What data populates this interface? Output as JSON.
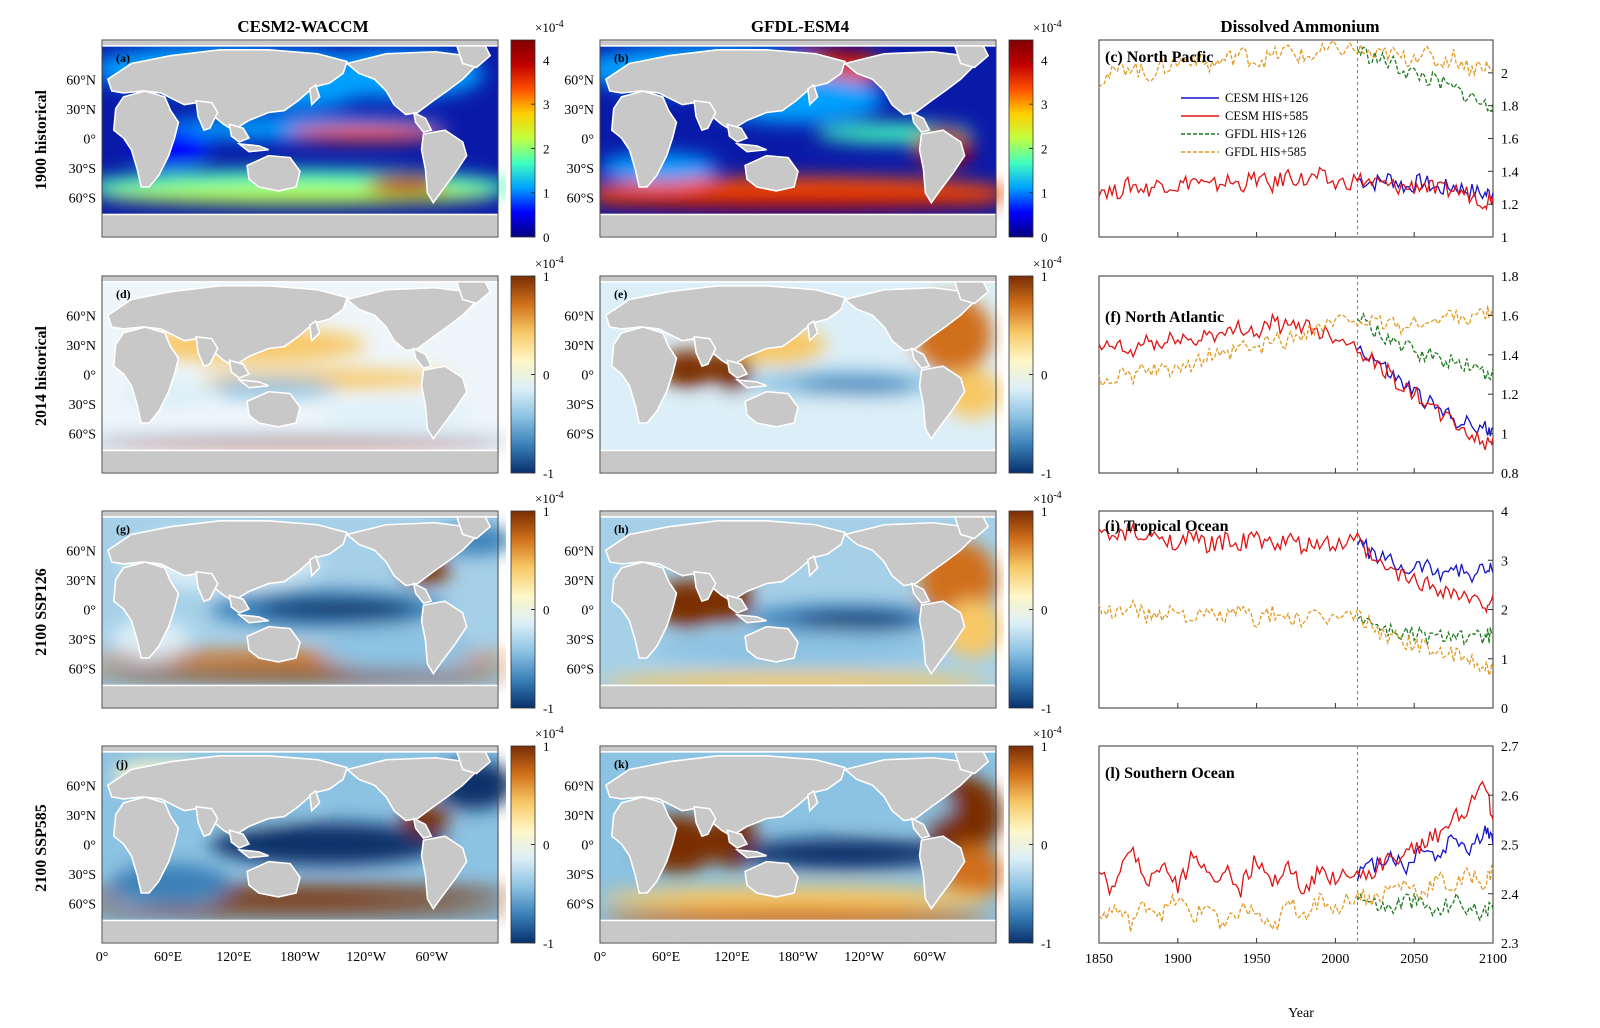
{
  "figure": {
    "columns": [
      "CESM2-WACCM",
      "GFDL-ESM4",
      "Dissolved Ammonium"
    ],
    "rows": [
      "1900 historical",
      "2014 historical",
      "2100 SSP126",
      "2100 SSP585"
    ],
    "lat_ticks": [
      "60°N",
      "30°N",
      "0°",
      "30°S",
      "60°S"
    ],
    "lon_ticks": [
      "0°",
      "60°E",
      "120°E",
      "180°W",
      "120°W",
      "60°W"
    ],
    "cb_exponent": "×10",
    "cb_exponent_power": "-4",
    "colorbar_abs": {
      "ticks": [
        "4",
        "3",
        "2",
        "1",
        "0"
      ],
      "colors": [
        "#08007f",
        "#0000ff",
        "#00a0ff",
        "#40ffc0",
        "#c0ff40",
        "#ffd000",
        "#ff5000",
        "#c00000",
        "#800000"
      ]
    },
    "colorbar_diff": {
      "ticks": [
        "1",
        "0",
        "-1"
      ],
      "colors": [
        "#7a2e05",
        "#d0701a",
        "#f8c866",
        "#fef6c6",
        "#dceff8",
        "#8cc2e2",
        "#3a80b8",
        "#08306b"
      ]
    },
    "map_panels": [
      {
        "tag": "(a)"
      },
      {
        "tag": "(b)"
      },
      {
        "tag": "(d)"
      },
      {
        "tag": "(e)"
      },
      {
        "tag": "(g)"
      },
      {
        "tag": "(h)"
      },
      {
        "tag": "(j)"
      },
      {
        "tag": "(k)"
      }
    ],
    "xlabel": "Year"
  },
  "chart_data": [
    {
      "type": "line",
      "title": "(c) North Pacfic",
      "x": [
        1850,
        1860,
        1870,
        1880,
        1890,
        1900,
        1910,
        1920,
        1930,
        1940,
        1950,
        1960,
        1970,
        1980,
        1990,
        2000,
        2014,
        2025,
        2035,
        2045,
        2055,
        2065,
        2075,
        2085,
        2095,
        2100
      ],
      "xlim": [
        1850,
        2100
      ],
      "xticks": [
        "1850",
        "1900",
        "1950",
        "2000",
        "2050",
        "2100"
      ],
      "ylim": [
        1,
        2.2
      ],
      "yticks": [
        "1",
        "1.2",
        "1.4",
        "1.6",
        "1.8",
        "2"
      ],
      "series": [
        {
          "name": "CESM HIS+126",
          "color": "#1414c8",
          "dash": false,
          "start_index": 16,
          "values": [
            1.3,
            1.27,
            1.32,
            1.29,
            1.33,
            1.31,
            1.35,
            1.3,
            1.34,
            1.32,
            1.36,
            1.31,
            1.38,
            1.34,
            1.37,
            1.32,
            1.35,
            1.33,
            1.36,
            1.3,
            1.34,
            1.29,
            1.31,
            1.28,
            1.26,
            1.27
          ]
        },
        {
          "name": "CESM HIS+585",
          "color": "#e01414",
          "dash": false,
          "start_index": 0,
          "values": [
            1.3,
            1.27,
            1.32,
            1.29,
            1.33,
            1.31,
            1.35,
            1.3,
            1.34,
            1.32,
            1.36,
            1.31,
            1.38,
            1.34,
            1.37,
            1.32,
            1.35,
            1.33,
            1.31,
            1.3,
            1.32,
            1.28,
            1.29,
            1.26,
            1.22,
            1.24
          ]
        },
        {
          "name": "GFDL HIS+126",
          "color": "#1e7a1e",
          "dash": true,
          "start_index": 16,
          "values": [
            1.96,
            2.0,
            2.05,
            1.98,
            2.03,
            2.06,
            2.1,
            2.04,
            2.08,
            2.12,
            2.07,
            2.1,
            2.14,
            2.09,
            2.12,
            2.15,
            2.14,
            2.09,
            2.06,
            2.01,
            1.98,
            1.94,
            1.9,
            1.86,
            1.8,
            1.82
          ]
        },
        {
          "name": "GFDL HIS+585",
          "color": "#e39a22",
          "dash": true,
          "start_index": 0,
          "values": [
            1.96,
            2.0,
            2.05,
            1.98,
            2.03,
            2.06,
            2.1,
            2.04,
            2.08,
            2.12,
            2.07,
            2.1,
            2.14,
            2.09,
            2.12,
            2.15,
            2.14,
            2.1,
            2.12,
            2.08,
            2.13,
            2.06,
            2.1,
            2.03,
            2.05,
            2.0
          ]
        }
      ]
    },
    {
      "type": "line",
      "title": "(f) North Atlantic",
      "x": [
        1850,
        1860,
        1870,
        1880,
        1890,
        1900,
        1910,
        1920,
        1930,
        1940,
        1950,
        1960,
        1970,
        1980,
        1990,
        2000,
        2014,
        2025,
        2035,
        2045,
        2055,
        2065,
        2075,
        2085,
        2095,
        2100
      ],
      "xlim": [
        1850,
        2100
      ],
      "xticks": [
        "1850",
        "1900",
        "1950",
        "2000",
        "2050",
        "2100"
      ],
      "ylim": [
        0.8,
        1.8
      ],
      "yticks": [
        "0.8",
        "1",
        "1.2",
        "1.4",
        "1.6",
        "1.8"
      ],
      "series": [
        {
          "name": "CESM HIS+126",
          "color": "#1414c8",
          "dash": false,
          "start_index": 16,
          "values": [
            1.42,
            1.45,
            1.4,
            1.48,
            1.44,
            1.5,
            1.46,
            1.52,
            1.49,
            1.55,
            1.51,
            1.57,
            1.53,
            1.56,
            1.52,
            1.5,
            1.44,
            1.38,
            1.3,
            1.24,
            1.18,
            1.12,
            1.08,
            1.04,
            1.02,
            1.03
          ]
        },
        {
          "name": "CESM HIS+585",
          "color": "#e01414",
          "dash": false,
          "start_index": 0,
          "values": [
            1.42,
            1.45,
            1.4,
            1.48,
            1.44,
            1.5,
            1.46,
            1.52,
            1.49,
            1.55,
            1.51,
            1.57,
            1.53,
            1.56,
            1.52,
            1.5,
            1.44,
            1.36,
            1.3,
            1.22,
            1.18,
            1.1,
            1.06,
            1.0,
            0.94,
            0.98
          ]
        },
        {
          "name": "GFDL HIS+126",
          "color": "#1e7a1e",
          "dash": true,
          "start_index": 16,
          "values": [
            1.26,
            1.3,
            1.28,
            1.33,
            1.31,
            1.36,
            1.34,
            1.4,
            1.38,
            1.44,
            1.42,
            1.48,
            1.47,
            1.52,
            1.54,
            1.56,
            1.59,
            1.52,
            1.48,
            1.43,
            1.4,
            1.38,
            1.36,
            1.35,
            1.3,
            1.33
          ]
        },
        {
          "name": "GFDL HIS+585",
          "color": "#e39a22",
          "dash": true,
          "start_index": 0,
          "values": [
            1.26,
            1.3,
            1.28,
            1.33,
            1.31,
            1.36,
            1.34,
            1.4,
            1.38,
            1.44,
            1.42,
            1.48,
            1.47,
            1.52,
            1.54,
            1.56,
            1.59,
            1.55,
            1.57,
            1.53,
            1.58,
            1.56,
            1.62,
            1.58,
            1.61,
            1.6
          ]
        }
      ]
    },
    {
      "type": "line",
      "title": "(i) Tropical Ocean",
      "x": [
        1850,
        1860,
        1870,
        1880,
        1890,
        1900,
        1910,
        1920,
        1930,
        1940,
        1950,
        1960,
        1970,
        1980,
        1990,
        2000,
        2014,
        2025,
        2035,
        2045,
        2055,
        2065,
        2075,
        2085,
        2095,
        2100
      ],
      "xlim": [
        1850,
        2100
      ],
      "xticks": [
        "1850",
        "1900",
        "1950",
        "2000",
        "2050",
        "2100"
      ],
      "ylim": [
        0,
        4
      ],
      "yticks": [
        "0",
        "1",
        "2",
        "3",
        "4"
      ],
      "series": [
        {
          "name": "CESM HIS+126",
          "color": "#1414c8",
          "dash": false,
          "start_index": 16,
          "values": [
            3.55,
            3.45,
            3.6,
            3.4,
            3.5,
            3.35,
            3.45,
            3.3,
            3.4,
            3.35,
            3.45,
            3.3,
            3.4,
            3.25,
            3.35,
            3.3,
            3.4,
            3.1,
            2.95,
            2.8,
            2.9,
            2.75,
            2.85,
            2.7,
            2.8,
            2.75
          ]
        },
        {
          "name": "CESM HIS+585",
          "color": "#e01414",
          "dash": false,
          "start_index": 0,
          "values": [
            3.55,
            3.45,
            3.6,
            3.4,
            3.5,
            3.35,
            3.45,
            3.3,
            3.4,
            3.35,
            3.45,
            3.3,
            3.4,
            3.25,
            3.35,
            3.3,
            3.4,
            2.95,
            2.8,
            2.65,
            2.55,
            2.45,
            2.35,
            2.2,
            2.1,
            2.3
          ]
        },
        {
          "name": "GFDL HIS+126",
          "color": "#1e7a1e",
          "dash": true,
          "start_index": 16,
          "values": [
            2.0,
            1.9,
            2.1,
            1.85,
            1.95,
            2.0,
            1.8,
            1.9,
            1.85,
            1.95,
            1.8,
            1.9,
            1.85,
            1.75,
            1.85,
            1.8,
            1.9,
            1.7,
            1.55,
            1.5,
            1.45,
            1.4,
            1.55,
            1.35,
            1.45,
            1.5
          ]
        },
        {
          "name": "GFDL HIS+585",
          "color": "#e39a22",
          "dash": true,
          "start_index": 0,
          "values": [
            2.0,
            1.9,
            2.1,
            1.85,
            1.95,
            2.0,
            1.8,
            1.9,
            1.85,
            1.95,
            1.8,
            1.9,
            1.85,
            1.75,
            1.85,
            1.8,
            1.9,
            1.6,
            1.45,
            1.35,
            1.25,
            1.15,
            1.05,
            0.95,
            0.85,
            0.8
          ]
        }
      ]
    },
    {
      "type": "line",
      "title": "(l) Southern Ocean",
      "x": [
        1850,
        1860,
        1870,
        1880,
        1890,
        1900,
        1910,
        1920,
        1930,
        1940,
        1950,
        1960,
        1970,
        1980,
        1990,
        2000,
        2014,
        2025,
        2035,
        2045,
        2055,
        2065,
        2075,
        2085,
        2095,
        2100
      ],
      "xlim": [
        1850,
        2100
      ],
      "xticks": [
        "1850",
        "1900",
        "1950",
        "2000",
        "2050",
        "2100"
      ],
      "ylim": [
        2.3,
        2.7
      ],
      "yticks": [
        "2.3",
        "2.4",
        "2.5",
        "2.6",
        "2.7"
      ],
      "series": [
        {
          "name": "CESM HIS+126",
          "color": "#1414c8",
          "dash": false,
          "start_index": 16,
          "values": [
            2.44,
            2.4,
            2.5,
            2.42,
            2.46,
            2.41,
            2.48,
            2.43,
            2.45,
            2.41,
            2.47,
            2.42,
            2.46,
            2.4,
            2.45,
            2.43,
            2.44,
            2.46,
            2.48,
            2.45,
            2.5,
            2.47,
            2.52,
            2.49,
            2.53,
            2.5
          ]
        },
        {
          "name": "CESM HIS+585",
          "color": "#e01414",
          "dash": false,
          "start_index": 0,
          "values": [
            2.44,
            2.4,
            2.5,
            2.42,
            2.46,
            2.41,
            2.48,
            2.43,
            2.45,
            2.41,
            2.47,
            2.42,
            2.46,
            2.4,
            2.45,
            2.43,
            2.44,
            2.45,
            2.47,
            2.48,
            2.5,
            2.52,
            2.55,
            2.58,
            2.62,
            2.55
          ]
        },
        {
          "name": "GFDL HIS+126",
          "color": "#1e7a1e",
          "dash": true,
          "start_index": 16,
          "values": [
            2.35,
            2.37,
            2.34,
            2.38,
            2.36,
            2.39,
            2.35,
            2.38,
            2.33,
            2.37,
            2.36,
            2.32,
            2.38,
            2.36,
            2.39,
            2.37,
            2.4,
            2.38,
            2.37,
            2.39,
            2.38,
            2.36,
            2.39,
            2.37,
            2.36,
            2.37
          ]
        },
        {
          "name": "GFDL HIS+585",
          "color": "#e39a22",
          "dash": true,
          "start_index": 0,
          "values": [
            2.35,
            2.37,
            2.34,
            2.38,
            2.36,
            2.39,
            2.35,
            2.38,
            2.33,
            2.37,
            2.36,
            2.32,
            2.38,
            2.36,
            2.39,
            2.37,
            2.4,
            2.39,
            2.41,
            2.42,
            2.4,
            2.43,
            2.41,
            2.44,
            2.42,
            2.45
          ]
        }
      ]
    }
  ]
}
